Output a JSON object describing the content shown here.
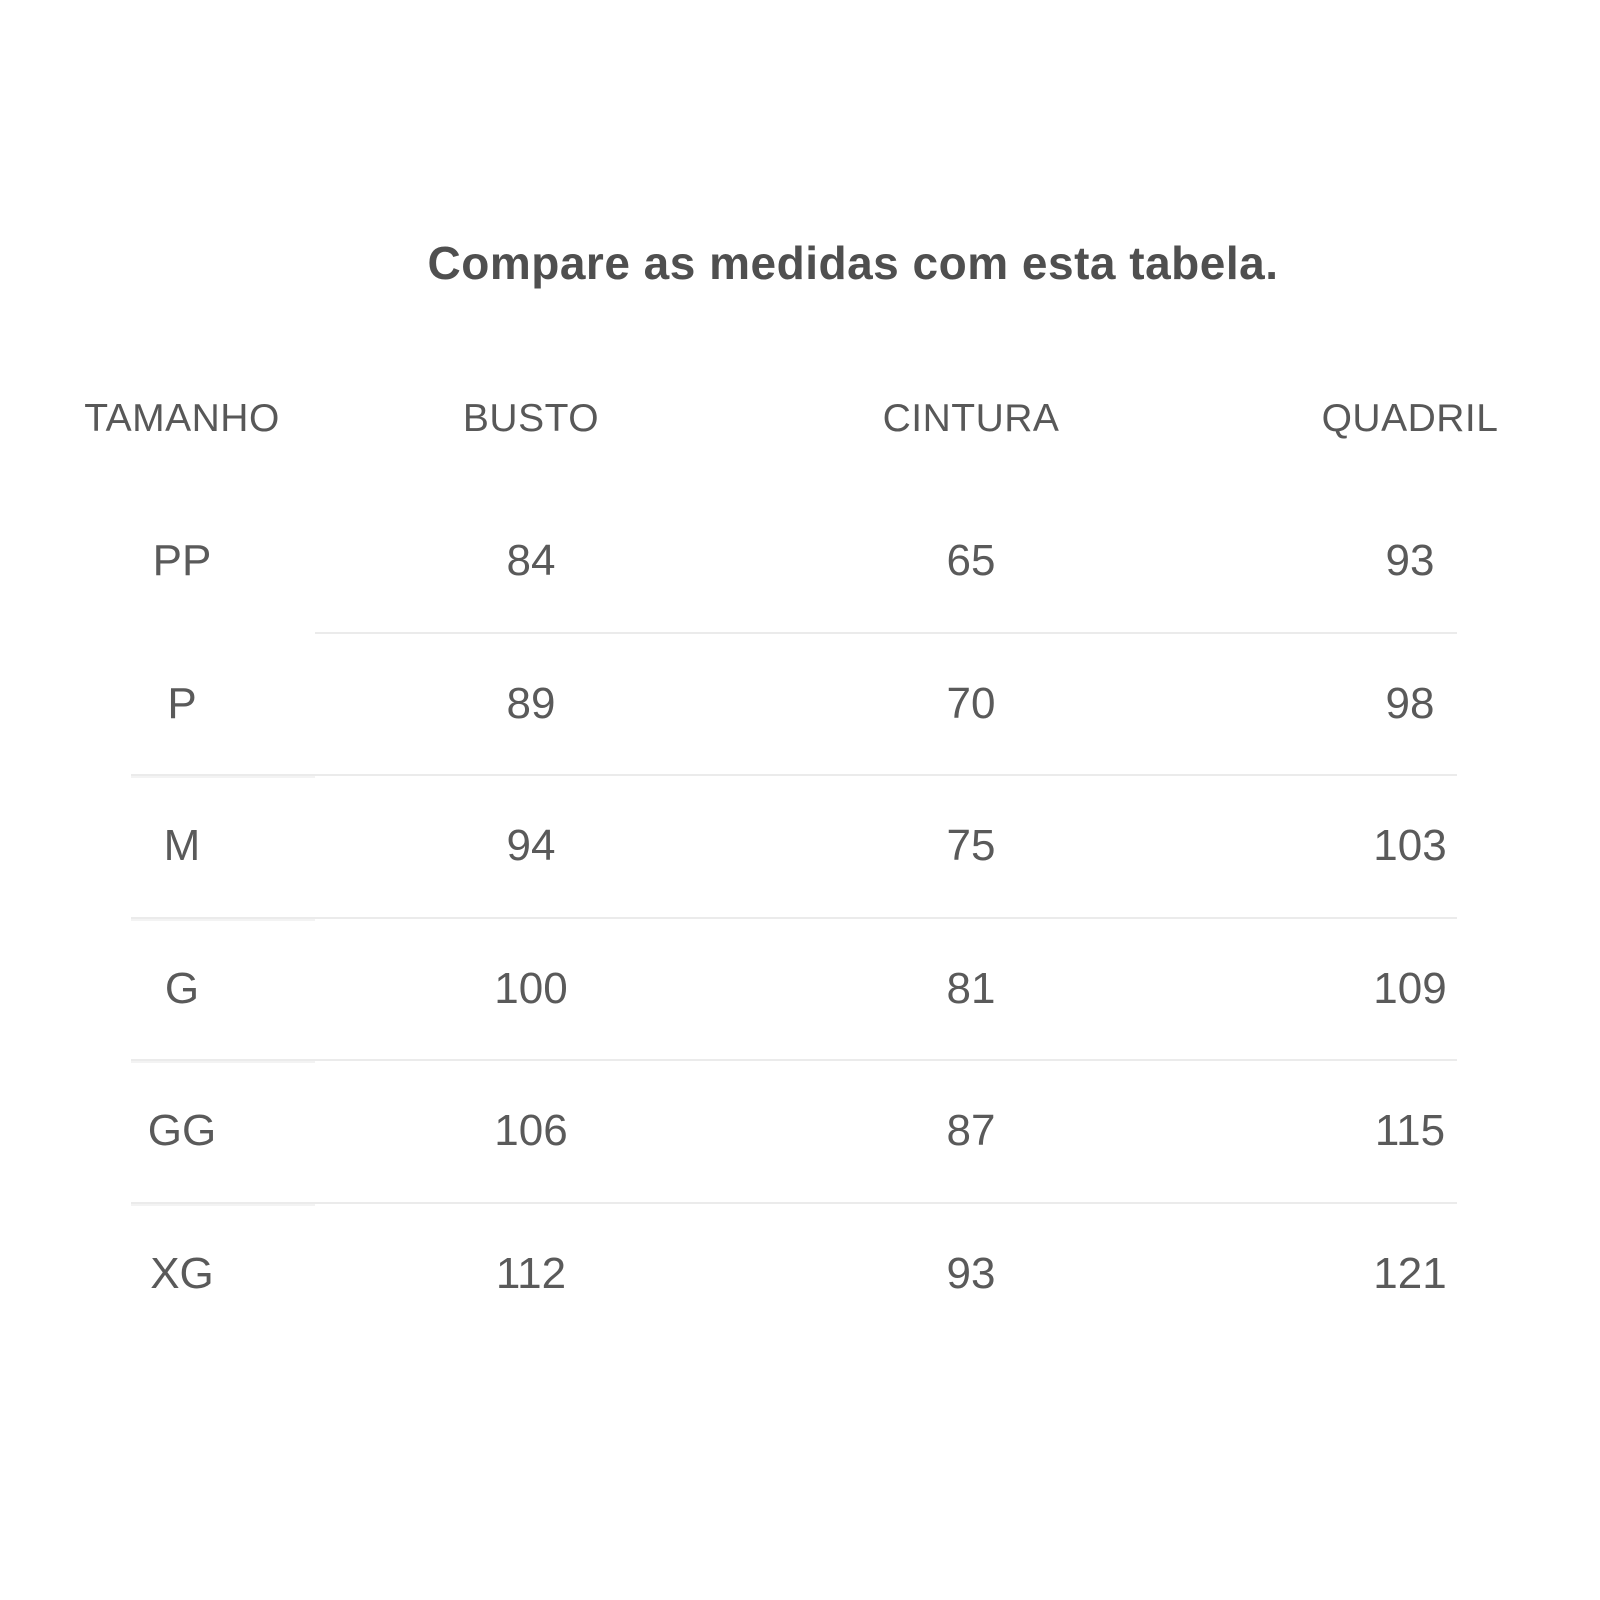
{
  "title": "Compare as medidas com esta tabela.",
  "size_table": {
    "columns": [
      "TAMANHO",
      "BUSTO",
      "CINTURA",
      "QUADRIL"
    ],
    "rows": [
      {
        "tamanho": "PP",
        "busto": "84",
        "cintura": "65",
        "quadril": "93"
      },
      {
        "tamanho": "P",
        "busto": "89",
        "cintura": "70",
        "quadril": "98"
      },
      {
        "tamanho": "M",
        "busto": "94",
        "cintura": "75",
        "quadril": "103"
      },
      {
        "tamanho": "G",
        "busto": "100",
        "cintura": "81",
        "quadril": "109"
      },
      {
        "tamanho": "GG",
        "busto": "106",
        "cintura": "87",
        "quadril": "115"
      },
      {
        "tamanho": "XG",
        "busto": "112",
        "cintura": "93",
        "quadril": "121"
      }
    ]
  },
  "colors": {
    "background": "#ffffff",
    "title_text": "#4f4f4f",
    "body_text": "#5a5a5a",
    "divider": "#ebebeb"
  }
}
